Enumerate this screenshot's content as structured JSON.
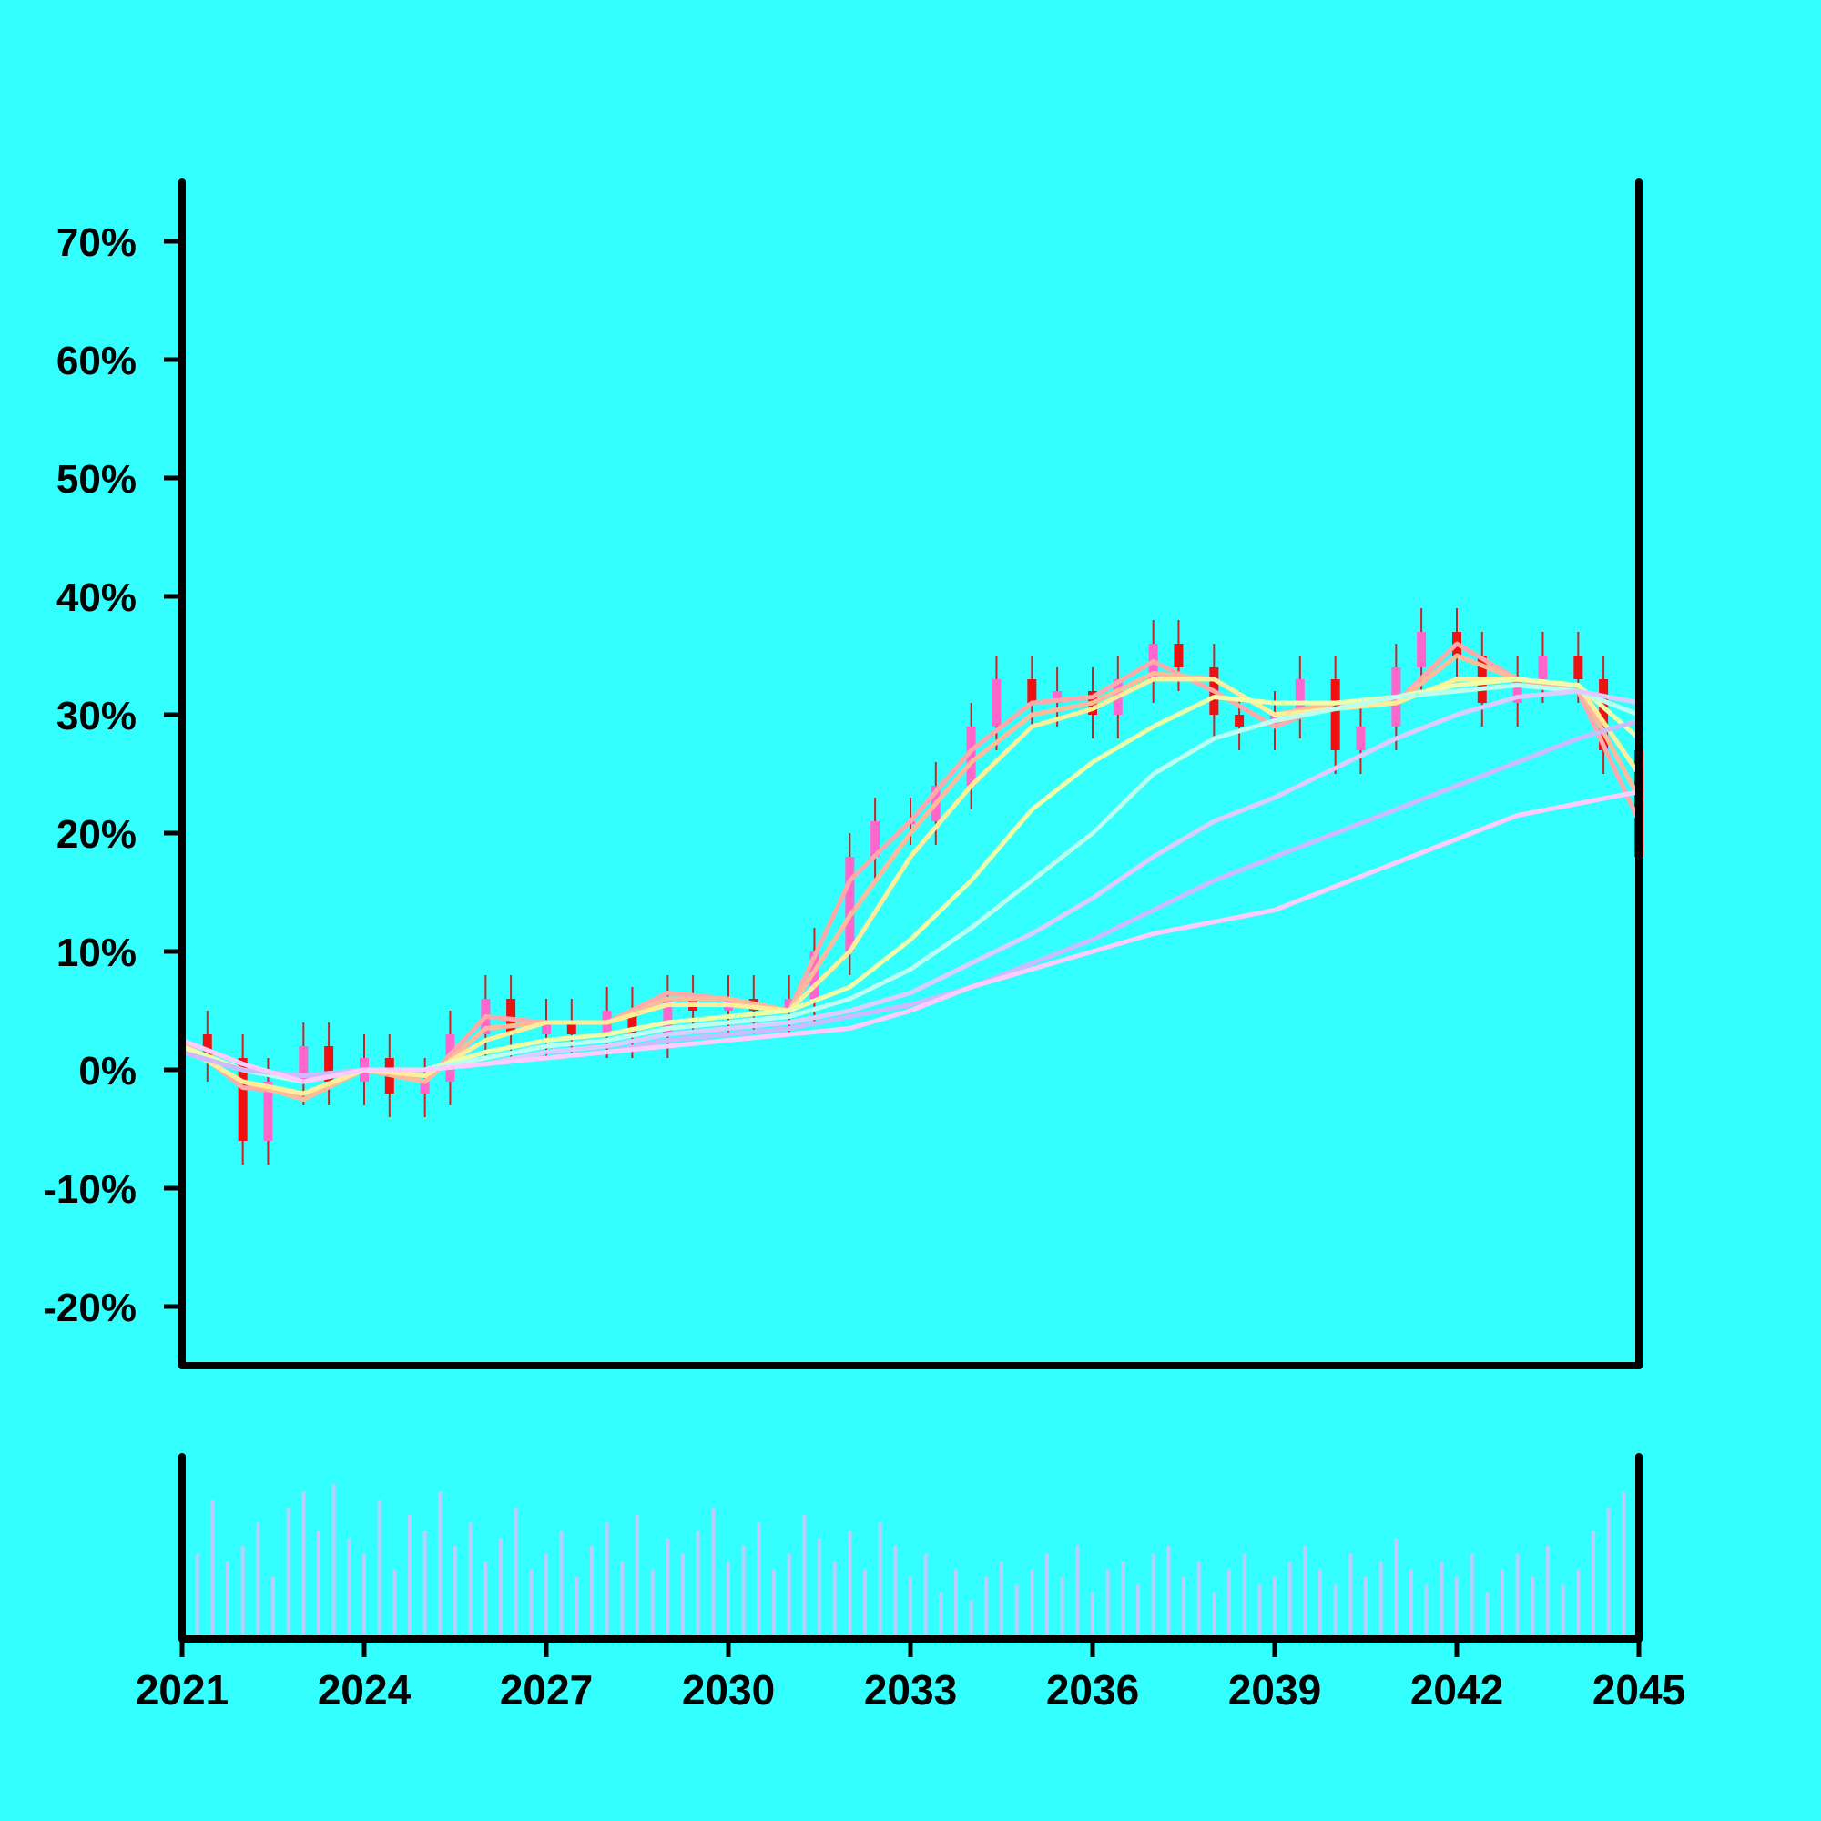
{
  "chart_data": [
    {
      "type": "candlestick",
      "title": "",
      "xlabel": "",
      "ylabel": "",
      "x_axis": {
        "type": "time",
        "range": [
          "2021-01",
          "2045-01"
        ],
        "ticks": [
          "2021",
          "2024",
          "2027",
          "2030",
          "2033",
          "2036",
          "2039",
          "2042",
          "2045"
        ]
      },
      "y_axis": {
        "unit": "%",
        "range": [
          -25,
          75
        ],
        "ticks": [
          "-20%",
          "-10%",
          "0%",
          "10%",
          "20%",
          "30%",
          "40%",
          "50%",
          "60%",
          "70%"
        ]
      },
      "grid": false,
      "legend": "none",
      "colors": {
        "up_candle": "#ff66cc",
        "down_candle": "#ee1111",
        "wick": "#cc2222",
        "background": "#33ffff",
        "axis": "#000000"
      },
      "close_series": {
        "x": [
          "2021-01",
          "2021-06",
          "2022-01",
          "2022-06",
          "2023-01",
          "2023-06",
          "2024-01",
          "2024-06",
          "2025-01",
          "2025-06",
          "2026-01",
          "2026-06",
          "2027-01",
          "2027-06",
          "2028-01",
          "2028-06",
          "2029-01",
          "2029-06",
          "2030-01",
          "2030-06",
          "2031-01",
          "2031-06",
          "2032-01",
          "2032-06",
          "2033-01",
          "2033-06",
          "2034-01",
          "2034-06",
          "2035-01",
          "2035-06",
          "2036-01",
          "2036-06",
          "2037-01",
          "2037-06",
          "2038-01",
          "2038-06",
          "2039-01",
          "2039-06",
          "2040-01",
          "2040-06",
          "2041-01",
          "2041-06",
          "2042-01",
          "2042-06",
          "2043-01",
          "2043-06",
          "2044-01",
          "2044-06",
          "2045-01"
        ],
        "y": [
          3,
          1,
          -6,
          -1,
          2,
          -1,
          1,
          -2,
          -1,
          3,
          6,
          3,
          4,
          3,
          5,
          3,
          6,
          5,
          6,
          5,
          6,
          10,
          18,
          21,
          21,
          24,
          29,
          33,
          31,
          32,
          30,
          33,
          36,
          34,
          30,
          29,
          30,
          33,
          27,
          29,
          34,
          37,
          35,
          31,
          33,
          35,
          33,
          27,
          18
        ]
      },
      "moving_averages": [
        {
          "color": "#ffaaaa",
          "x": [
            "2021",
            "2022",
            "2023",
            "2024",
            "2025",
            "2026",
            "2027",
            "2028",
            "2029",
            "2030",
            "2031",
            "2032",
            "2033",
            "2034",
            "2035",
            "2036",
            "2037",
            "2038",
            "2039",
            "2040",
            "2041",
            "2042",
            "2043",
            "2044",
            "2045"
          ],
          "y": [
            2.5,
            -1.5,
            -2,
            0,
            -1,
            4.5,
            4,
            4,
            6.5,
            6,
            5,
            16,
            21,
            27,
            31,
            31.5,
            34.5,
            32,
            29,
            31,
            31,
            36,
            33,
            32,
            21
          ]
        },
        {
          "color": "#ffbb99",
          "x": [
            "2021",
            "2022",
            "2023",
            "2024",
            "2025",
            "2026",
            "2027",
            "2028",
            "2029",
            "2030",
            "2031",
            "2032",
            "2033",
            "2034",
            "2035",
            "2036",
            "2037",
            "2038",
            "2039",
            "2040",
            "2041",
            "2042",
            "2043",
            "2044",
            "2045"
          ],
          "y": [
            2,
            -1,
            -2.5,
            0,
            -1,
            3.5,
            4,
            4,
            6,
            6,
            5,
            13,
            20,
            26,
            30,
            31,
            33.5,
            33,
            30,
            31,
            31,
            35,
            33,
            32.5,
            23
          ]
        },
        {
          "color": "#ffee99",
          "x": [
            "2021",
            "2022",
            "2023",
            "2024",
            "2025",
            "2026",
            "2027",
            "2028",
            "2029",
            "2030",
            "2031",
            "2032",
            "2033",
            "2034",
            "2035",
            "2036",
            "2037",
            "2038",
            "2039",
            "2040",
            "2041",
            "2042",
            "2043",
            "2044",
            "2045"
          ],
          "y": [
            2,
            -1,
            -2,
            0,
            -0.5,
            2.5,
            4,
            4,
            5.5,
            5.5,
            5,
            10,
            18,
            24,
            29,
            30.5,
            33,
            33,
            30,
            30.5,
            31,
            33,
            33,
            32.5,
            25
          ]
        },
        {
          "color": "#eeffaa",
          "x": [
            "2021",
            "2022",
            "2023",
            "2024",
            "2025",
            "2026",
            "2027",
            "2028",
            "2029",
            "2030",
            "2031",
            "2032",
            "2033",
            "2034",
            "2035",
            "2036",
            "2037",
            "2038",
            "2039",
            "2040",
            "2041",
            "2042",
            "2043",
            "2044",
            "2045"
          ],
          "y": [
            2,
            0,
            -1,
            0,
            0,
            1.5,
            2.5,
            3,
            4,
            4.5,
            5,
            7,
            11,
            16,
            22,
            26,
            29,
            31.5,
            31,
            31,
            31.5,
            32.5,
            33,
            32.5,
            28
          ]
        },
        {
          "color": "#bbffee",
          "x": [
            "2021",
            "2022",
            "2023",
            "2024",
            "2025",
            "2026",
            "2027",
            "2028",
            "2029",
            "2030",
            "2031",
            "2032",
            "2033",
            "2034",
            "2035",
            "2036",
            "2037",
            "2038",
            "2039",
            "2040",
            "2041",
            "2042",
            "2043",
            "2044",
            "2045"
          ],
          "y": [
            1.5,
            0,
            -1,
            0,
            0,
            1,
            2,
            2.5,
            3.5,
            4,
            4.5,
            6,
            8.5,
            12,
            16,
            20,
            25,
            28,
            29.5,
            30.5,
            31.5,
            32,
            32.5,
            32,
            30
          ]
        },
        {
          "color": "#ddccff",
          "x": [
            "2021",
            "2022",
            "2023",
            "2024",
            "2025",
            "2026",
            "2027",
            "2028",
            "2029",
            "2030",
            "2031",
            "2032",
            "2033",
            "2034",
            "2035",
            "2036",
            "2037",
            "2038",
            "2039",
            "2040",
            "2041",
            "2042",
            "2043",
            "2044",
            "2045"
          ],
          "y": [
            1.5,
            0,
            -0.5,
            0,
            0,
            0.5,
            1.5,
            2,
            3,
            3.5,
            4,
            5,
            6.5,
            9,
            11.5,
            14.5,
            18,
            21,
            23,
            25.5,
            28,
            30,
            31.5,
            32,
            31
          ]
        },
        {
          "color": "#ccbbff",
          "x": [
            "2021",
            "2022",
            "2023",
            "2024",
            "2025",
            "2026",
            "2027",
            "2028",
            "2029",
            "2030",
            "2031",
            "2032",
            "2033",
            "2034",
            "2035",
            "2036",
            "2037",
            "2038",
            "2039",
            "2040",
            "2041",
            "2042",
            "2043",
            "2044",
            "2045"
          ],
          "y": [
            1.5,
            0,
            -0.5,
            0,
            0,
            0.5,
            1,
            1.5,
            2.5,
            3,
            3.5,
            4.5,
            5.5,
            7,
            9,
            11,
            13.5,
            16,
            18,
            20,
            22,
            24,
            26,
            28,
            29.5
          ]
        },
        {
          "color": "#ffccff",
          "x": [
            "2021",
            "2022",
            "2023",
            "2024",
            "2025",
            "2026",
            "2027",
            "2028",
            "2029",
            "2030",
            "2031",
            "2032",
            "2033",
            "2034",
            "2035",
            "2036",
            "2037",
            "2038",
            "2039",
            "2040",
            "2041",
            "2042",
            "2043",
            "2044",
            "2045"
          ],
          "y": [
            2.5,
            0.5,
            -1,
            0,
            0,
            0.5,
            1,
            1.5,
            2,
            2.5,
            3,
            3.5,
            5,
            7,
            8.5,
            10,
            11.5,
            12.5,
            13.5,
            15.5,
            17.5,
            19.5,
            21.5,
            22.5,
            23.5
          ]
        }
      ]
    },
    {
      "type": "bar",
      "title": "",
      "xlabel": "",
      "ylabel": "",
      "y_axis": {
        "ticks": []
      },
      "colors": {
        "bar": "#bbccff"
      },
      "x": [
        "2021-01",
        "2021-04",
        "2021-07",
        "2021-10",
        "2022-01",
        "2022-04",
        "2022-07",
        "2022-10",
        "2023-01",
        "2023-04",
        "2023-07",
        "2023-10",
        "2024-01",
        "2024-04",
        "2024-07",
        "2024-10",
        "2025-01",
        "2025-04",
        "2025-07",
        "2025-10",
        "2026-01",
        "2026-04",
        "2026-07",
        "2026-10",
        "2027-01",
        "2027-04",
        "2027-07",
        "2027-10",
        "2028-01",
        "2028-04",
        "2028-07",
        "2028-10",
        "2029-01",
        "2029-04",
        "2029-07",
        "2029-10",
        "2030-01",
        "2030-04",
        "2030-07",
        "2030-10",
        "2031-01",
        "2031-04",
        "2031-07",
        "2031-10",
        "2032-01",
        "2032-04",
        "2032-07",
        "2032-10",
        "2033-01",
        "2033-04",
        "2033-07",
        "2033-10",
        "2034-01",
        "2034-04",
        "2034-07",
        "2034-10",
        "2035-01",
        "2035-04",
        "2035-07",
        "2035-10",
        "2036-01",
        "2036-04",
        "2036-07",
        "2036-10",
        "2037-01",
        "2037-04",
        "2037-07",
        "2037-10",
        "2038-01",
        "2038-04",
        "2038-07",
        "2038-10",
        "2039-01",
        "2039-04",
        "2039-07",
        "2039-10",
        "2040-01",
        "2040-04",
        "2040-07",
        "2040-10",
        "2041-01",
        "2041-04",
        "2041-07",
        "2041-10",
        "2042-01",
        "2042-04",
        "2042-07",
        "2042-10",
        "2043-01",
        "2043-04",
        "2043-07",
        "2043-10",
        "2044-01",
        "2044-04",
        "2044-07",
        "2044-10"
      ],
      "values": [
        80,
        55,
        90,
        50,
        60,
        75,
        40,
        85,
        95,
        70,
        100,
        65,
        55,
        90,
        45,
        80,
        70,
        95,
        60,
        75,
        50,
        65,
        85,
        45,
        55,
        70,
        40,
        60,
        75,
        50,
        80,
        45,
        65,
        55,
        70,
        85,
        50,
        60,
        75,
        45,
        55,
        80,
        65,
        50,
        70,
        45,
        75,
        60,
        40,
        55,
        30,
        45,
        25,
        40,
        50,
        35,
        45,
        55,
        40,
        60,
        30,
        45,
        50,
        35,
        55,
        60,
        40,
        50,
        30,
        45,
        55,
        35,
        40,
        50,
        60,
        45,
        35,
        55,
        40,
        50,
        65,
        45,
        35,
        50,
        40,
        55,
        30,
        45,
        55,
        40,
        60,
        35,
        45,
        70,
        85,
        95
      ]
    }
  ]
}
